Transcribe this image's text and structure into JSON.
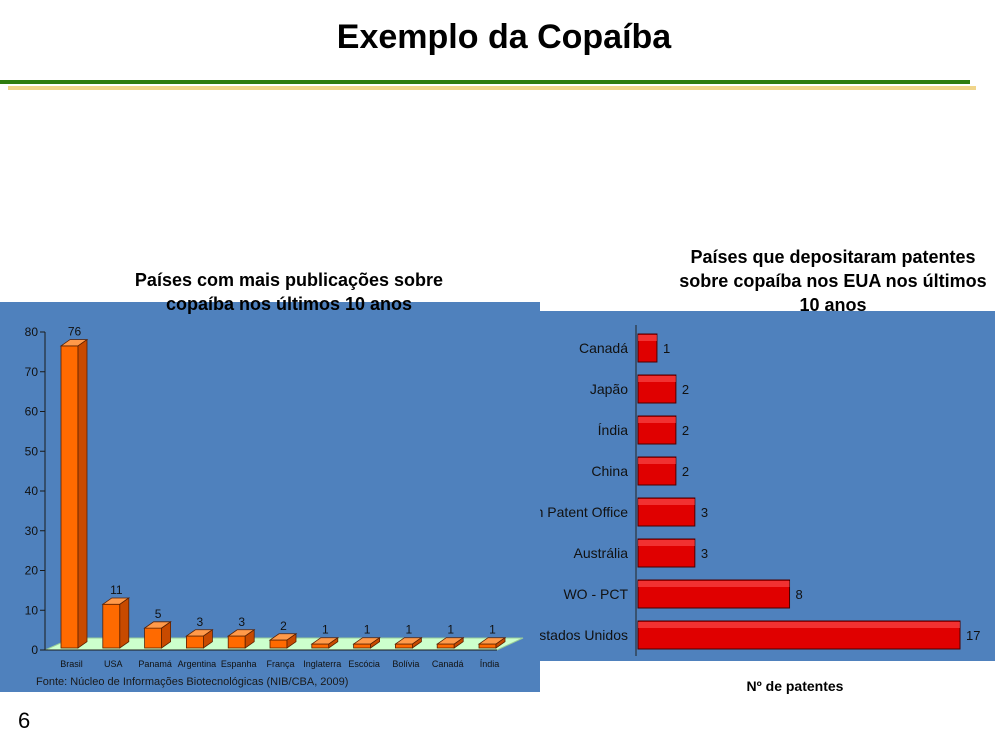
{
  "slide": {
    "title": "Exemplo da Copaíba",
    "number": "6"
  },
  "colors": {
    "panel": "#4f81bd",
    "bar_left": "#ff6a00",
    "bar_right": "#e00000",
    "rule_green": "#2e7d0f",
    "rule_gold": "#f0d58a",
    "floor": "#ccffcc"
  },
  "chart_data": [
    {
      "type": "bar",
      "title": "Países com mais publicações sobre copaíba nos últimos 10 anos",
      "categories": [
        "Brasil",
        "USA",
        "Panamá",
        "Argentina",
        "Espanha",
        "França",
        "Inglaterra",
        "Escócia",
        "Bolívia",
        "Canadá",
        "Índia"
      ],
      "values": [
        76,
        11,
        5,
        3,
        3,
        2,
        1,
        1,
        1,
        1,
        1
      ],
      "yticks": [
        0,
        10,
        20,
        30,
        40,
        50,
        60,
        70,
        80
      ],
      "ylim": [
        0,
        80
      ],
      "xlabel": "",
      "ylabel": "",
      "grid": false,
      "source": "Fonte: Núcleo de Informações Biotecnológicas (NIB/CBA, 2009)"
    },
    {
      "type": "bar",
      "orientation": "horizontal",
      "title": "Países que depositaram patentes sobre copaíba nos EUA nos últimos 10 anos",
      "categories": [
        "Canadá",
        "Japão",
        "Índia",
        "China",
        "European Patent Office",
        "Austrália",
        "WO - PCT",
        "Estados Unidos"
      ],
      "values": [
        1,
        2,
        2,
        2,
        3,
        3,
        8,
        17
      ],
      "xlabel": "Nº de patentes",
      "xlim": [
        0,
        17
      ],
      "grid": false
    }
  ]
}
